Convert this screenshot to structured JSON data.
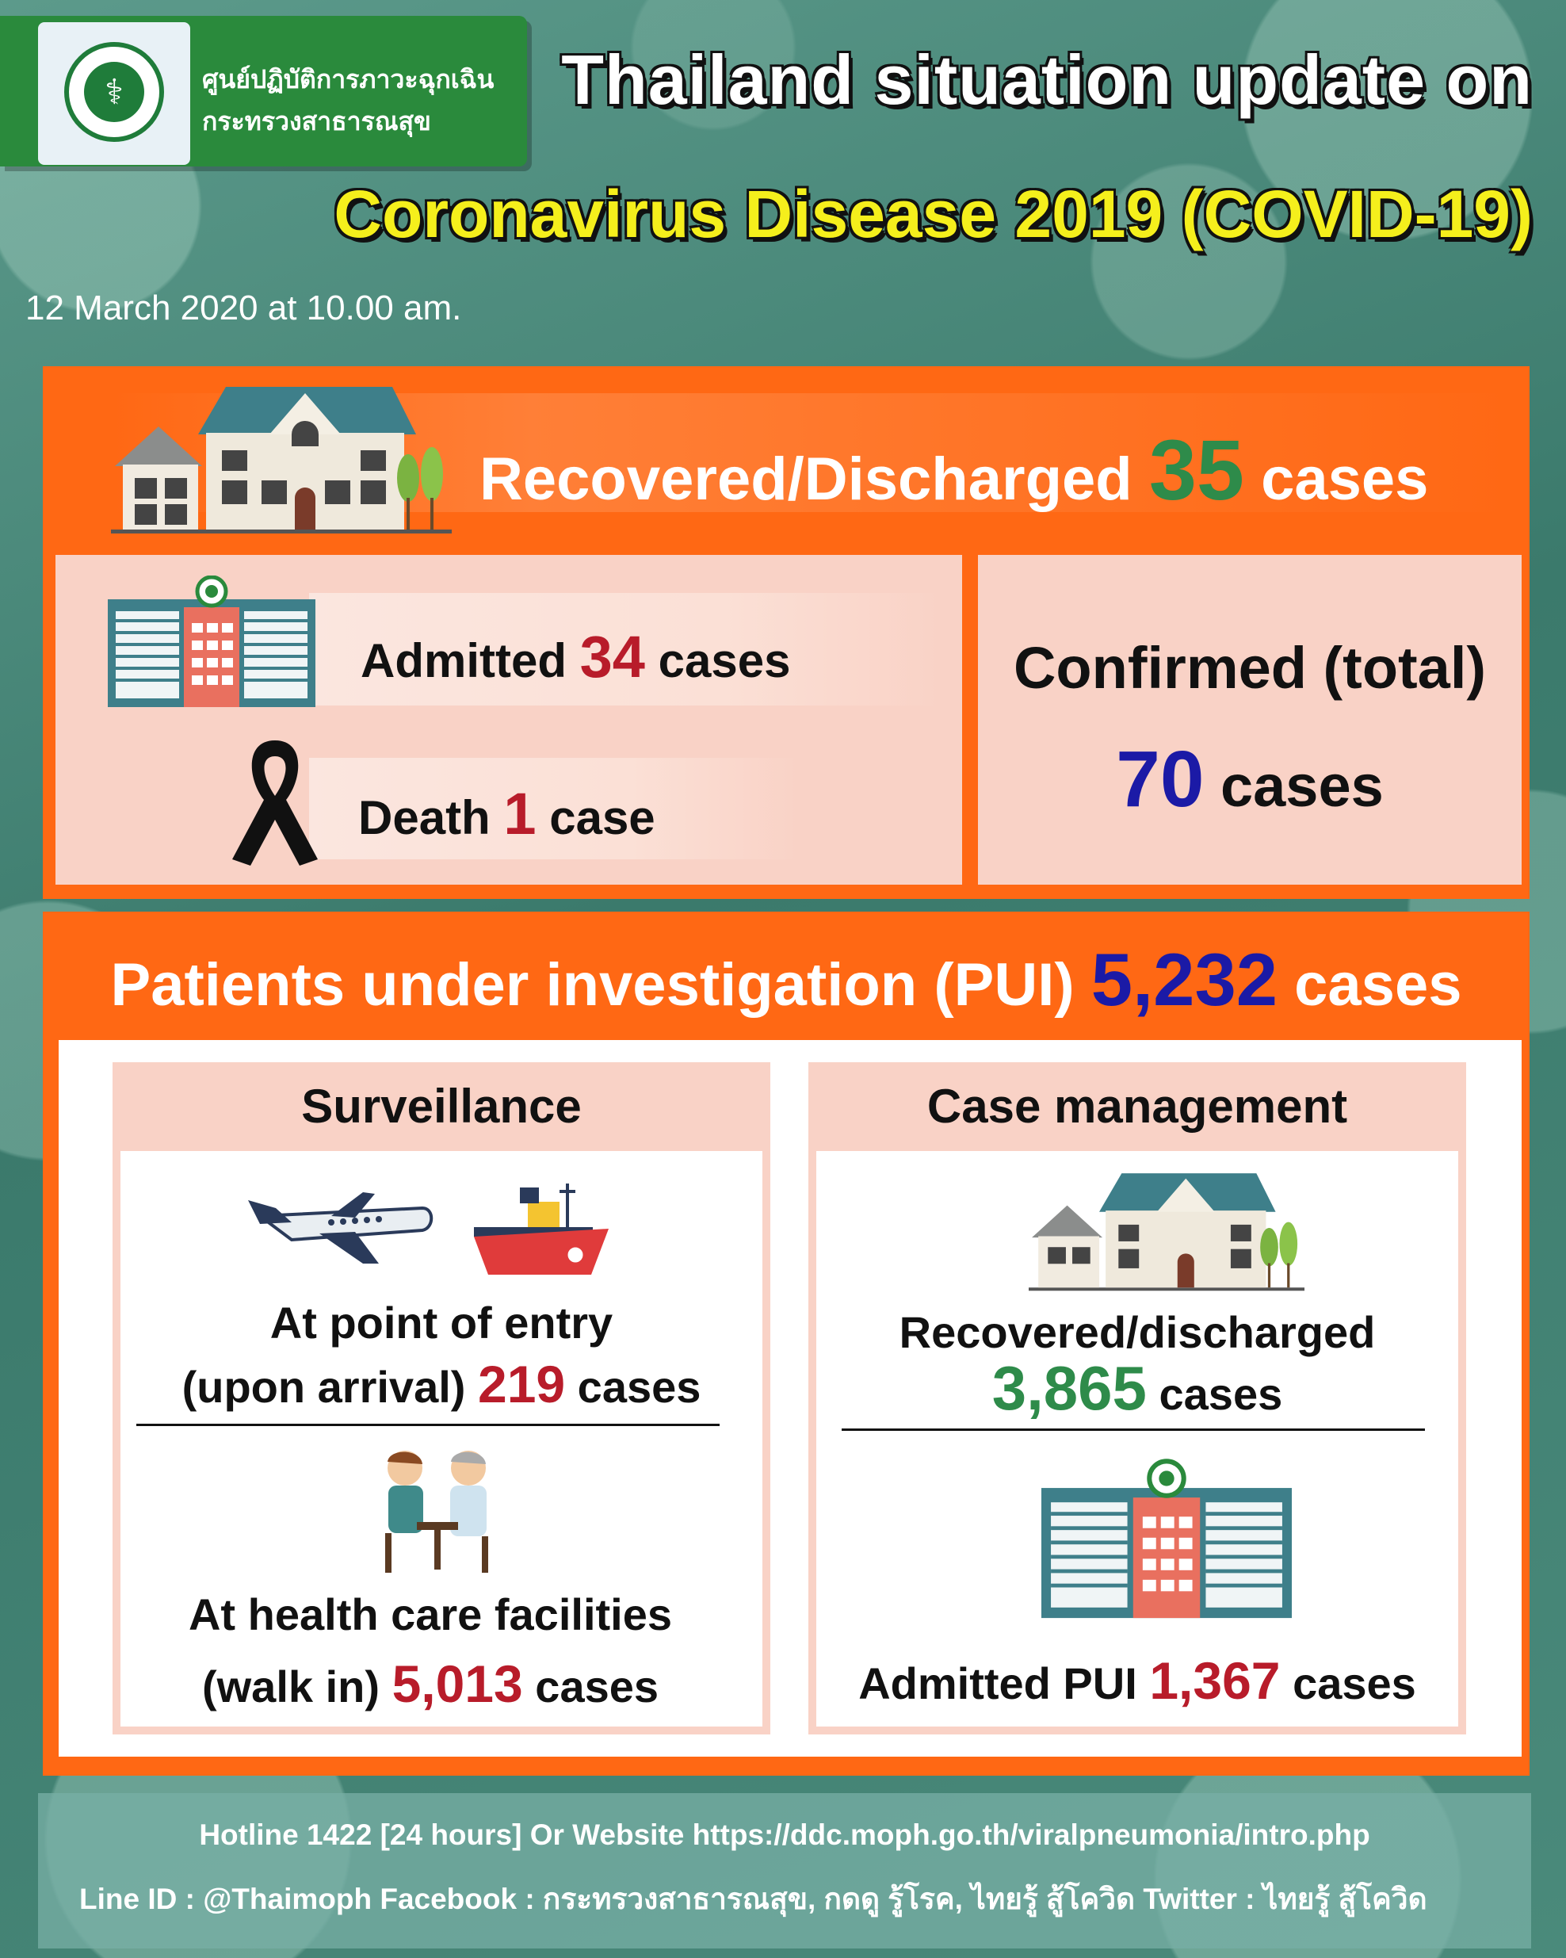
{
  "org": {
    "name_line1": "ศูนย์ปฏิบัติการภาวะฉุกเฉิน",
    "name_line2": "กระทรวงสาธารณสุข"
  },
  "header": {
    "title_line1": "Thailand situation update on",
    "title_line2": "Coronavirus Disease 2019 (COVID-19)",
    "date": "12 March 2020 at 10.00 am."
  },
  "summary": {
    "recovered_label": "Recovered/Discharged",
    "recovered_value": "35",
    "recovered_unit": "cases",
    "admitted_label": "Admitted",
    "admitted_value": "34",
    "admitted_unit": "cases",
    "death_label": "Death",
    "death_value": "1",
    "death_unit": "case",
    "confirmed_label": "Confirmed (total)",
    "confirmed_value": "70",
    "confirmed_unit": "cases"
  },
  "pui": {
    "label": "Patients under investigation (PUI)",
    "value": "5,232",
    "unit": "cases",
    "surveillance": {
      "title": "Surveillance",
      "entry_line1": "At point of entry",
      "entry_line2_prefix": "(upon arrival)",
      "entry_value": "219",
      "entry_unit": "cases",
      "facility_line1": "At health care facilities",
      "facility_line2_prefix": "(walk in)",
      "facility_value": "5,013",
      "facility_unit": "cases"
    },
    "case_management": {
      "title": "Case management",
      "recovered_label": "Recovered/discharged",
      "recovered_value": "3,865",
      "recovered_unit": "cases",
      "admitted_label": "Admitted PUI",
      "admitted_value": "1,367",
      "admitted_unit": "cases"
    }
  },
  "footer": {
    "line1": "Hotline 1422 [24 hours] Or Website https://ddc.moph.go.th/viralpneumonia/intro.php",
    "line2": "Line ID : @Thaimoph  Facebook : กระทรวงสาธารณสุข, กดดู รู้โรค, ไทยรู้ สู้โควิด Twitter : ไทยรู้ สู้โควิด"
  },
  "colors": {
    "orange": "#ff6814",
    "pink": "#f9d2c6",
    "green_number": "#2e8b4a",
    "red_number": "#b81c2a",
    "blue_number": "#1b1aa6",
    "title_yellow": "#f5ef1c"
  },
  "icons": [
    "moph-seal-logo",
    "house-icon",
    "hospital-icon",
    "black-ribbon-icon",
    "airplane-icon",
    "ship-icon",
    "doctor-patient-icon"
  ]
}
